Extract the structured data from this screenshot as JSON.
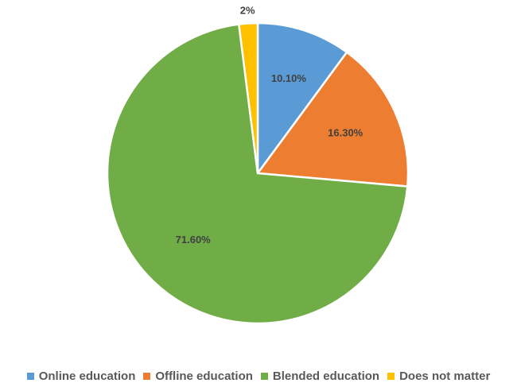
{
  "chart_data": {
    "type": "pie",
    "title": "",
    "slices": [
      {
        "label": "Online education",
        "value": 10.1,
        "display": "10.10%",
        "color": "#5B9BD5"
      },
      {
        "label": "Offline education",
        "value": 16.3,
        "display": "16.30%",
        "color": "#ED7D31"
      },
      {
        "label": "Blended education",
        "value": 71.6,
        "display": "71.60%",
        "color": "#70AD47"
      },
      {
        "label": "Does not matter",
        "value": 2,
        "display": "2%",
        "color": "#FFC000"
      }
    ],
    "legend_position": "bottom",
    "start_angle": "12 o'clock",
    "direction": "clockwise"
  }
}
